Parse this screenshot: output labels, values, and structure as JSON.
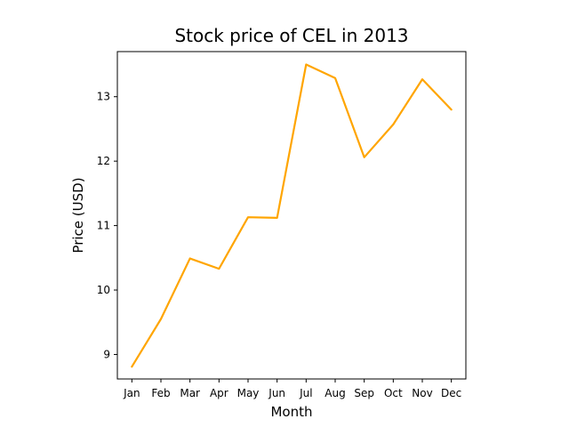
{
  "chart_data": {
    "type": "line",
    "title": "Stock price of CEL in 2013",
    "xlabel": "Month",
    "ylabel": "Price (USD)",
    "categories": [
      "Jan",
      "Feb",
      "Mar",
      "Apr",
      "May",
      "Jun",
      "Jul",
      "Aug",
      "Sep",
      "Oct",
      "Nov",
      "Dec"
    ],
    "series": [
      {
        "values": [
          8.81,
          9.55,
          10.49,
          10.33,
          11.13,
          11.12,
          13.5,
          13.29,
          12.06,
          12.57,
          13.27,
          12.8
        ],
        "color": "#ffa500"
      }
    ],
    "ylim": [
      8.62,
      13.7
    ],
    "yticks": [
      9,
      10,
      11,
      12,
      13
    ],
    "grid": false,
    "legend": "none"
  }
}
